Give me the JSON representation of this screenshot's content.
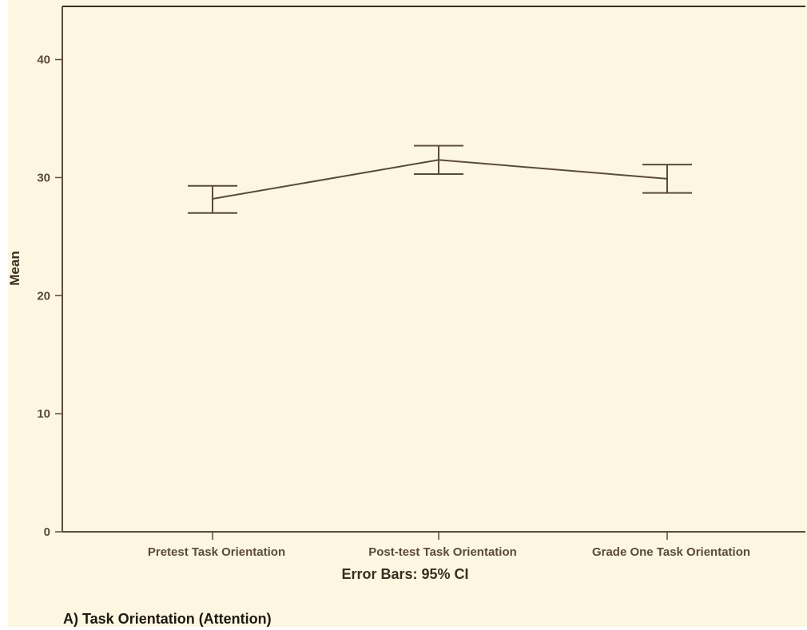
{
  "colors": {
    "background": "#fdf7e1",
    "axis": "#5a4a3a",
    "line": "#5a4a3a"
  },
  "footer": {
    "error_note": "Error Bars: 95% CI",
    "caption": "A) Task Orientation (Attention)"
  },
  "chart_data": {
    "type": "line",
    "title": "",
    "xlabel": "",
    "ylabel": "Mean",
    "ylim": [
      0,
      44.5
    ],
    "yticks": [
      0,
      10,
      20,
      30,
      40
    ],
    "ytick_labels": [
      "0",
      "10",
      "20",
      "30",
      "40"
    ],
    "grid": false,
    "categories": [
      "Pretest Task Orientation",
      "Post-test Task Orientation",
      "Grade One Task Orientation"
    ],
    "series": [
      {
        "values": [
          28.2,
          31.5,
          29.9
        ],
        "ci_lower": [
          27.0,
          30.3,
          28.7
        ],
        "ci_upper": [
          29.3,
          32.7,
          31.1
        ]
      }
    ]
  }
}
